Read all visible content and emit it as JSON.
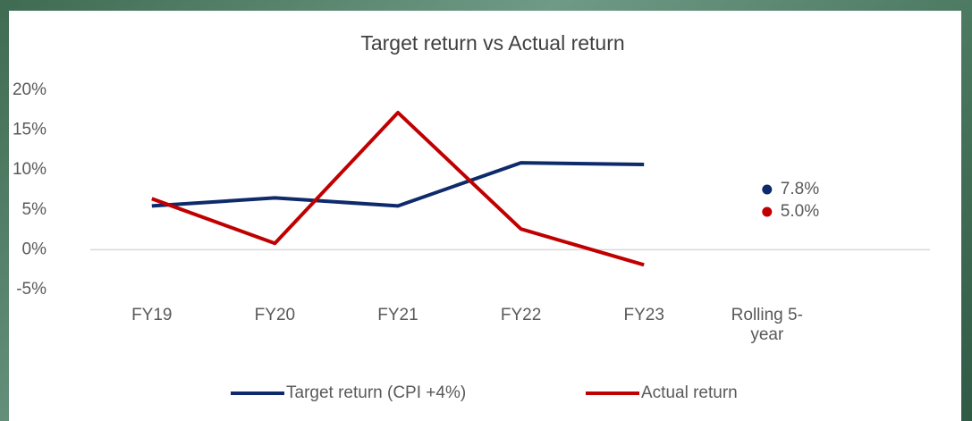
{
  "chart_data": {
    "type": "line",
    "title": "Target return vs Actual return",
    "categories": [
      "FY19",
      "FY20",
      "FY21",
      "FY22",
      "FY23",
      "Rolling 5-year"
    ],
    "series": [
      {
        "name": "Target return (CPI +4%)",
        "color": "#0e2a6b",
        "values": [
          5.5,
          6.5,
          5.5,
          10.9,
          10.7,
          null
        ],
        "point_value": 7.8,
        "point_label": "7.8%"
      },
      {
        "name": "Actual return",
        "color": "#c00000",
        "values": [
          6.4,
          0.8,
          17.2,
          2.6,
          -1.9,
          null
        ],
        "point_value": 5.0,
        "point_label": "5.0%"
      }
    ],
    "ylim": [
      -5,
      20
    ],
    "yticks": [
      {
        "value": -5,
        "label": "-5%"
      },
      {
        "value": 0,
        "label": "0%"
      },
      {
        "value": 5,
        "label": "5%"
      },
      {
        "value": 10,
        "label": "10%"
      },
      {
        "value": 15,
        "label": "15%"
      },
      {
        "value": 20,
        "label": "20%"
      }
    ],
    "legend": "bottom"
  }
}
